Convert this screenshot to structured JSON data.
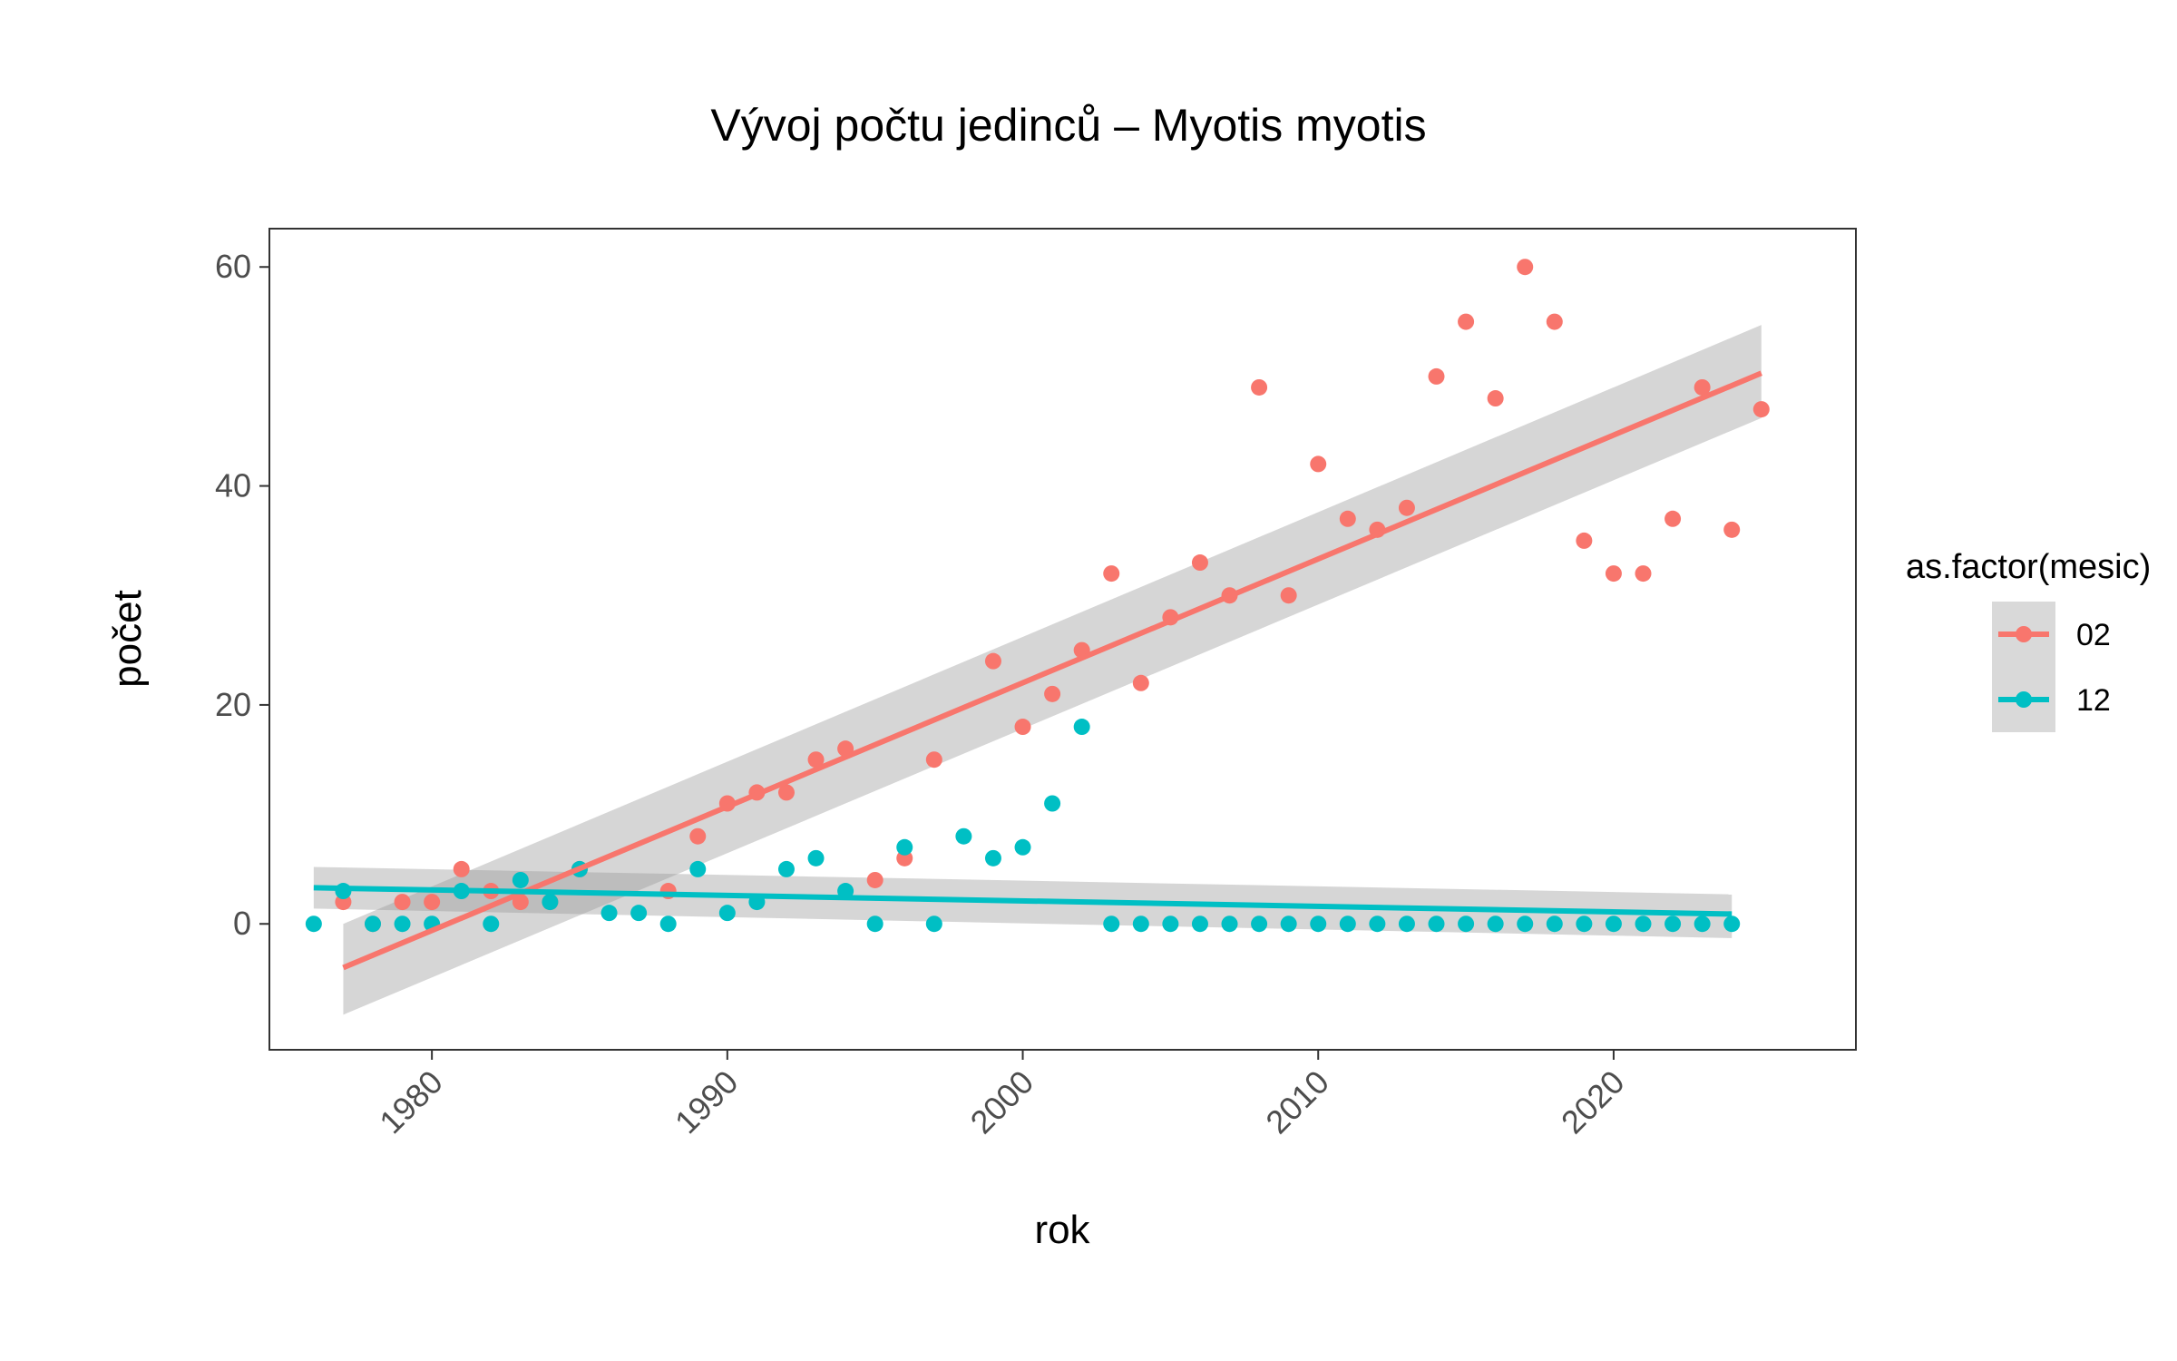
{
  "chart_data": {
    "type": "scatter",
    "title": "Vývoj počtu jedinců – Myotis myotis",
    "xlabel": "rok",
    "ylabel": "počet",
    "xlim": [
      1974.5,
      2028.2
    ],
    "ylim": [
      -11.5,
      63.5
    ],
    "x_ticks": [
      1980,
      1990,
      2000,
      2010,
      2020
    ],
    "y_ticks": [
      0,
      20,
      40,
      60
    ],
    "grid": false,
    "legend": {
      "title": "as.factor(mesic)",
      "position": "right"
    },
    "series": [
      {
        "name": "02",
        "color": "#F8766D",
        "points": [
          [
            1977,
            2
          ],
          [
            1978,
            0
          ],
          [
            1979,
            2
          ],
          [
            1980,
            2
          ],
          [
            1981,
            5
          ],
          [
            1982,
            3
          ],
          [
            1983,
            2
          ],
          [
            1984,
            2
          ],
          [
            1985,
            5
          ],
          [
            1988,
            3
          ],
          [
            1989,
            8
          ],
          [
            1990,
            11
          ],
          [
            1991,
            12
          ],
          [
            1992,
            12
          ],
          [
            1993,
            15
          ],
          [
            1994,
            16
          ],
          [
            1995,
            4
          ],
          [
            1996,
            6
          ],
          [
            1997,
            15
          ],
          [
            1999,
            24
          ],
          [
            2000,
            18
          ],
          [
            2001,
            21
          ],
          [
            2002,
            25
          ],
          [
            2003,
            32
          ],
          [
            2004,
            22
          ],
          [
            2005,
            28
          ],
          [
            2006,
            33
          ],
          [
            2007,
            30
          ],
          [
            2008,
            49
          ],
          [
            2009,
            30
          ],
          [
            2010,
            42
          ],
          [
            2011,
            37
          ],
          [
            2012,
            36
          ],
          [
            2013,
            38
          ],
          [
            2014,
            50
          ],
          [
            2015,
            55
          ],
          [
            2016,
            48
          ],
          [
            2017,
            60
          ],
          [
            2018,
            55
          ],
          [
            2019,
            35
          ],
          [
            2020,
            32
          ],
          [
            2021,
            32
          ],
          [
            2022,
            37
          ],
          [
            2023,
            49
          ],
          [
            2024,
            36
          ],
          [
            2025,
            47
          ]
        ],
        "trend": {
          "x": [
            1977,
            2025
          ],
          "y": [
            -4.0,
            50.3
          ],
          "ci_lower": [
            -8.3,
            46.2
          ],
          "ci_upper": [
            0.0,
            54.7
          ]
        }
      },
      {
        "name": "12",
        "color": "#00BFC4",
        "points": [
          [
            1976,
            0
          ],
          [
            1977,
            3
          ],
          [
            1978,
            0
          ],
          [
            1979,
            0
          ],
          [
            1980,
            0
          ],
          [
            1981,
            3
          ],
          [
            1982,
            0
          ],
          [
            1983,
            4
          ],
          [
            1984,
            2
          ],
          [
            1985,
            5
          ],
          [
            1986,
            1
          ],
          [
            1987,
            1
          ],
          [
            1988,
            0
          ],
          [
            1989,
            5
          ],
          [
            1990,
            1
          ],
          [
            1991,
            2
          ],
          [
            1992,
            5
          ],
          [
            1993,
            6
          ],
          [
            1994,
            3
          ],
          [
            1995,
            0
          ],
          [
            1996,
            7
          ],
          [
            1997,
            0
          ],
          [
            1998,
            8
          ],
          [
            1999,
            6
          ],
          [
            2000,
            7
          ],
          [
            2001,
            11
          ],
          [
            2002,
            18
          ],
          [
            2003,
            0
          ],
          [
            2004,
            0
          ],
          [
            2005,
            0
          ],
          [
            2006,
            0
          ],
          [
            2007,
            0
          ],
          [
            2008,
            0
          ],
          [
            2009,
            0
          ],
          [
            2010,
            0
          ],
          [
            2011,
            0
          ],
          [
            2012,
            0
          ],
          [
            2013,
            0
          ],
          [
            2014,
            0
          ],
          [
            2015,
            0
          ],
          [
            2016,
            0
          ],
          [
            2017,
            0
          ],
          [
            2018,
            0
          ],
          [
            2019,
            0
          ],
          [
            2020,
            0
          ],
          [
            2021,
            0
          ],
          [
            2022,
            0
          ],
          [
            2023,
            0
          ],
          [
            2024,
            0
          ]
        ],
        "trend": {
          "x": [
            1976,
            2024
          ],
          "y": [
            3.3,
            0.9
          ],
          "ci_lower": [
            1.4,
            -1.3
          ],
          "ci_upper": [
            5.2,
            2.7
          ]
        }
      }
    ]
  }
}
